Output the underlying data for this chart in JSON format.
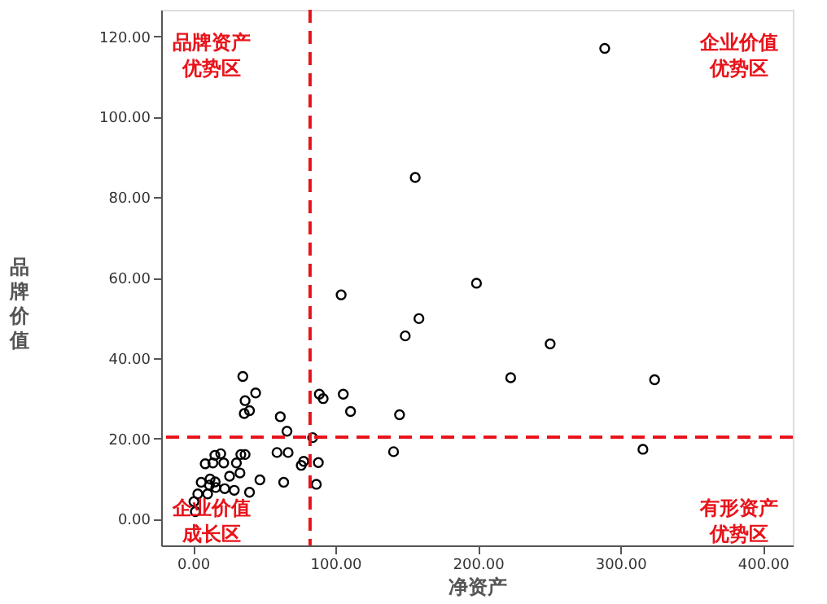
{
  "chart_data": {
    "type": "scatter",
    "xlabel": "净资产",
    "ylabel": "品牌价值",
    "marker": "circle",
    "grid": false,
    "xlim": [
      -22.3,
      421
    ],
    "ylim": [
      -6.6,
      126.6
    ],
    "xticks": [
      {
        "value": 0,
        "label": "0.00"
      },
      {
        "value": 100,
        "label": "100.00"
      },
      {
        "value": 200,
        "label": "200.00"
      },
      {
        "value": 300,
        "label": "300.00"
      },
      {
        "value": 400,
        "label": "400.00"
      }
    ],
    "yticks": [
      {
        "value": 0,
        "label": "0.00"
      },
      {
        "value": 20,
        "label": "20.00"
      },
      {
        "value": 40,
        "label": "40.00"
      },
      {
        "value": 60,
        "label": "60.00"
      },
      {
        "value": 80,
        "label": "80.00"
      },
      {
        "value": 100,
        "label": "100.00"
      },
      {
        "value": 120,
        "label": "120.00"
      }
    ],
    "ref_lines": [
      {
        "axis": "x",
        "value": 82.2,
        "color": "#e8141b",
        "line_style": "dashed"
      },
      {
        "axis": "y",
        "value": 20.3,
        "color": "#e8141b",
        "line_style": "dashed"
      }
    ],
    "annotations": [
      "品牌资产优势区",
      "企业价值优势区",
      "企业价值成长区",
      "有形资产优势区"
    ],
    "series": [
      {
        "color": "#000000",
        "x": [
          289,
          156,
          199,
          104,
          158.6,
          149,
          250.7,
          223,
          324,
          35,
          44,
          36.6,
          36,
          39.7,
          88.7,
          91.4,
          105.5,
          110.6,
          145,
          61.3,
          66,
          84,
          140.8,
          315.8,
          59,
          66.8,
          76,
          77.7,
          88,
          86.6,
          63.7,
          47,
          39.7,
          33.6,
          36.6,
          30.5,
          33,
          25.7,
          29,
          19.5,
          15.4,
          8.6,
          14,
          21.6,
          12.0,
          15.6,
          11.6,
          5.8,
          16,
          22.3,
          3.4,
          1.7,
          0.7,
          10.3
        ],
        "values": [
          117,
          84.9,
          58.6,
          55.7,
          49.8,
          45.5,
          43.5,
          35.1,
          34.6,
          35.4,
          31.3,
          29.4,
          26.2,
          26.9,
          31,
          29.9,
          31,
          26.7,
          25.9,
          25.4,
          21.8,
          20.2,
          16.7,
          17.3,
          16.5,
          16.5,
          13.3,
          14.3,
          14,
          8.6,
          9.1,
          9.7,
          6.6,
          16,
          16,
          13.9,
          11.4,
          10.6,
          7.1,
          16.2,
          15.8,
          13.7,
          13.9,
          13.9,
          9.9,
          9.2,
          8.4,
          9.1,
          7.8,
          7.5,
          6.2,
          1.8,
          4.3,
          6.2
        ]
      }
    ]
  }
}
